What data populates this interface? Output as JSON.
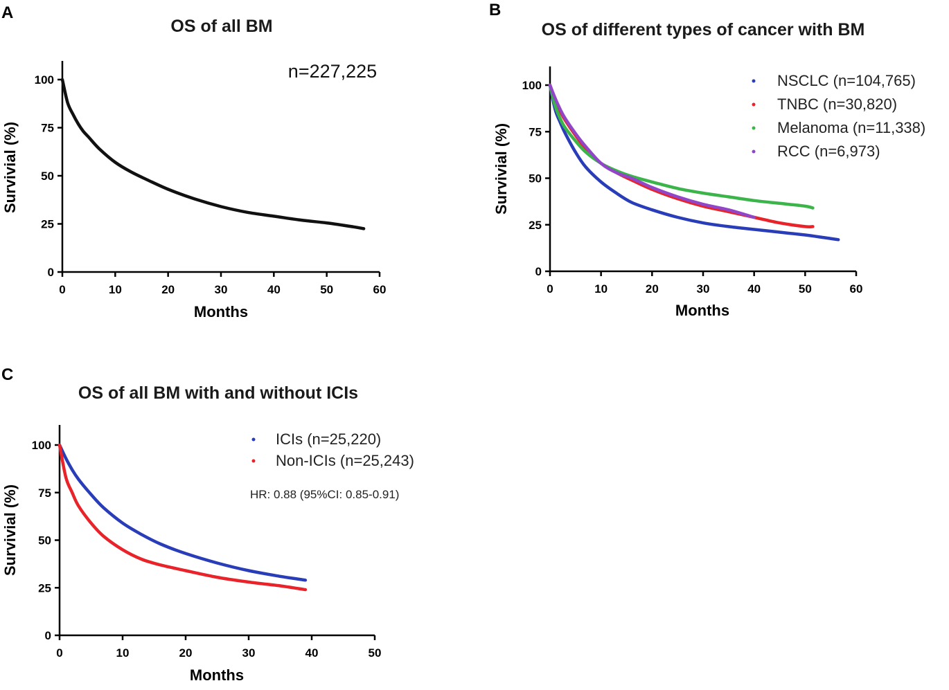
{
  "chart_data": [
    {
      "panel": "A",
      "type": "line",
      "title": "OS of all BM",
      "xlabel": "Months",
      "ylabel": "Survivial (%)",
      "xlim": [
        0,
        60
      ],
      "ylim": [
        0,
        110
      ],
      "xticks": [
        "0",
        "10",
        "20",
        "30",
        "40",
        "50",
        "60"
      ],
      "yticks": [
        "0",
        "25",
        "50",
        "75",
        "100"
      ],
      "annotation": "n=227,225",
      "series": [
        {
          "name": "All BM",
          "color": "#111111",
          "x": [
            0,
            1,
            2,
            3,
            4,
            5,
            7,
            10,
            13,
            16,
            20,
            25,
            30,
            35,
            40,
            45,
            50,
            55,
            57
          ],
          "y": [
            100,
            88,
            82,
            77,
            73,
            70,
            64,
            57,
            52,
            48,
            43,
            38,
            34,
            31,
            29,
            27,
            25.5,
            23.5,
            22.5
          ]
        }
      ]
    },
    {
      "panel": "B",
      "type": "line",
      "title": "OS of different types of cancer with BM",
      "xlabel": "Months",
      "ylabel": "Survivial (%)",
      "xlim": [
        0,
        60
      ],
      "ylim": [
        0,
        110
      ],
      "xticks": [
        "0",
        "10",
        "20",
        "30",
        "40",
        "50",
        "60"
      ],
      "yticks": [
        "0",
        "25",
        "50",
        "75",
        "100"
      ],
      "series": [
        {
          "name": "NSCLC (n=104,765)",
          "color": "#2a3db8",
          "x": [
            0,
            1,
            2,
            3,
            5,
            7,
            10,
            13,
            16,
            20,
            25,
            30,
            35,
            40,
            45,
            50,
            54,
            56.5
          ],
          "y": [
            100,
            87,
            80,
            74,
            64,
            56,
            48,
            42,
            37,
            33,
            29,
            26,
            24,
            22.5,
            21,
            19.5,
            18,
            17
          ]
        },
        {
          "name": "TNBC (n=30,820)",
          "color": "#e8232a",
          "x": [
            0,
            1,
            2,
            3,
            5,
            7,
            10,
            13,
            16,
            20,
            25,
            30,
            35,
            40,
            45,
            50,
            51.5
          ],
          "y": [
            100,
            92,
            86,
            81,
            73,
            66,
            58,
            53,
            49,
            44,
            39,
            35,
            32,
            29,
            26,
            24,
            24
          ]
        },
        {
          "name": "Melanoma (n=11,338)",
          "color": "#3bb44a",
          "x": [
            0,
            1,
            2,
            3,
            5,
            7,
            10,
            13,
            16,
            20,
            25,
            30,
            35,
            40,
            45,
            50,
            51.5
          ],
          "y": [
            100,
            89,
            82,
            77,
            70,
            64,
            58,
            54,
            51,
            48,
            44.5,
            42,
            40,
            38,
            36.5,
            35,
            34
          ]
        },
        {
          "name": "RCC (n=6,973)",
          "color": "#9146c8",
          "x": [
            0,
            1,
            2,
            3,
            5,
            7,
            10,
            13,
            16,
            20,
            25,
            30,
            35,
            40
          ],
          "y": [
            100,
            93,
            87,
            82,
            74,
            67,
            58,
            53,
            50,
            45,
            40,
            36,
            33,
            29
          ]
        }
      ]
    },
    {
      "panel": "C",
      "type": "line",
      "title": "OS of all BM with and without ICIs",
      "xlabel": "Months",
      "ylabel": "Survivial (%)",
      "xlim": [
        0,
        50
      ],
      "ylim": [
        0,
        110
      ],
      "xticks": [
        "0",
        "10",
        "20",
        "30",
        "40",
        "50"
      ],
      "yticks": [
        "0",
        "25",
        "50",
        "75",
        "100"
      ],
      "annotation": "HR: 0.88 (95%CI: 0.85-0.91)",
      "series": [
        {
          "name": "ICIs (n=25,220)",
          "color": "#2a3db8",
          "x": [
            0,
            1,
            2,
            3,
            5,
            7,
            10,
            13,
            16,
            20,
            25,
            30,
            35,
            38,
            39
          ],
          "y": [
            100,
            93,
            87,
            82,
            74,
            67,
            59,
            53,
            48,
            43,
            38,
            34,
            31,
            29.5,
            29
          ]
        },
        {
          "name": "Non-ICIs (n=25,243)",
          "color": "#e8232a",
          "x": [
            0,
            1,
            2,
            3,
            5,
            7,
            10,
            13,
            16,
            20,
            25,
            30,
            35,
            38,
            39
          ],
          "y": [
            100,
            83,
            75,
            68,
            59,
            52,
            45,
            40,
            37,
            34,
            30.5,
            28,
            26,
            24.5,
            24
          ]
        }
      ]
    }
  ],
  "panels": {
    "A": {
      "letter": "A",
      "title": "OS of all BM",
      "xlabel": "Months",
      "ylabel": "Survivial (%)",
      "n_label": "n=227,225"
    },
    "B": {
      "letter": "B",
      "title": "OS of different types of cancer with BM",
      "xlabel": "Months",
      "ylabel": "Survivial (%)",
      "legend": [
        "NSCLC (n=104,765)",
        "TNBC (n=30,820)",
        "Melanoma (n=11,338)",
        "RCC (n=6,973)"
      ]
    },
    "C": {
      "letter": "C",
      "title": "OS of all BM with and without ICIs",
      "xlabel": "Months",
      "ylabel": "Survivial (%)",
      "legend": [
        "ICIs (n=25,220)",
        "Non-ICIs (n=25,243)"
      ],
      "hr_label": "HR: 0.88 (95%CI: 0.85-0.91)"
    }
  }
}
